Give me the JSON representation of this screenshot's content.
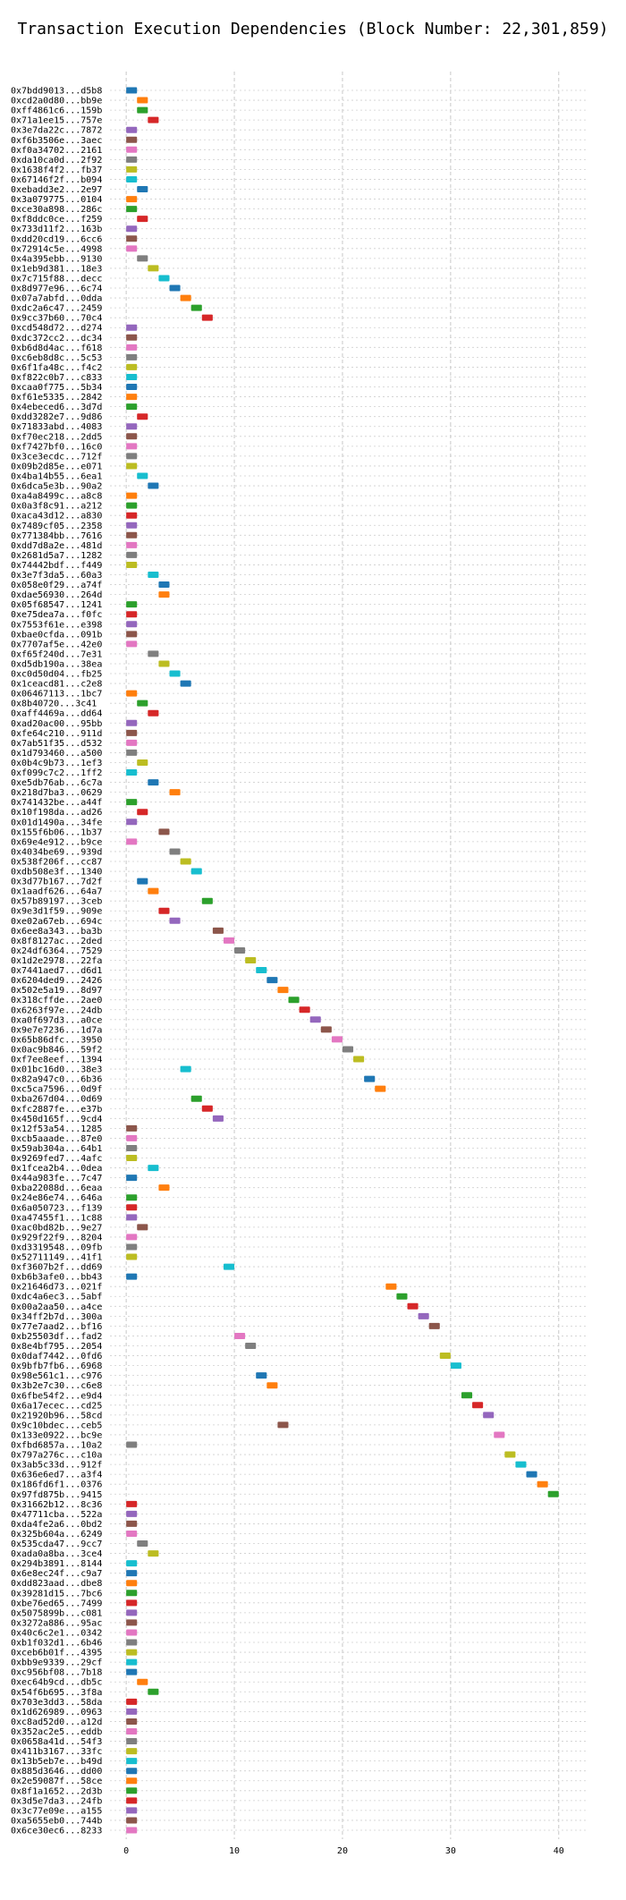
{
  "chart_data": {
    "type": "bar",
    "orientation": "horizontal-gantt",
    "title": "Transaction Execution Dependencies (Block Number: 22,301,859)",
    "xlabel": "",
    "ylabel": "",
    "xlim": [
      -1.5,
      42.5
    ],
    "x_ticks": [
      0,
      10,
      20,
      30,
      40
    ],
    "grid": "vertical dashed lines and dotted row lines",
    "legend": "none",
    "palette": [
      "#1f77b4",
      "#ff7f0e",
      "#2ca02c",
      "#d62728",
      "#9467bd",
      "#8c564b",
      "#e377c2",
      "#7f7f7f",
      "#bcbd22",
      "#17becf"
    ],
    "rows": [
      {
        "tx": "0x7bdd9013...d5b8",
        "start": 0,
        "color": "#1f77b4"
      },
      {
        "tx": "0xcd2a0d80...bb9e",
        "start": 1,
        "color": "#ff7f0e"
      },
      {
        "tx": "0xff4861c6...159b",
        "start": 1,
        "color": "#2ca02c"
      },
      {
        "tx": "0x71a1ee15...757e",
        "start": 2,
        "color": "#d62728"
      },
      {
        "tx": "0x3e7da22c...7872",
        "start": 0,
        "color": "#9467bd"
      },
      {
        "tx": "0xf6b3506e...3aec",
        "start": 0,
        "color": "#8c564b"
      },
      {
        "tx": "0xf0a34702...2161",
        "start": 0,
        "color": "#e377c2"
      },
      {
        "tx": "0xda10ca0d...2f92",
        "start": 0,
        "color": "#7f7f7f"
      },
      {
        "tx": "0x1638f4f2...fb37",
        "start": 0,
        "color": "#bcbd22"
      },
      {
        "tx": "0x67146f2f...b094",
        "start": 0,
        "color": "#17becf"
      },
      {
        "tx": "0xebadd3e2...2e97",
        "start": 1,
        "color": "#1f77b4"
      },
      {
        "tx": "0x3a079775...0104",
        "start": 0,
        "color": "#ff7f0e"
      },
      {
        "tx": "0xce30a898...286c",
        "start": 0,
        "color": "#2ca02c"
      },
      {
        "tx": "0xf8ddc0ce...f259",
        "start": 1,
        "color": "#d62728"
      },
      {
        "tx": "0x733d11f2...163b",
        "start": 0,
        "color": "#9467bd"
      },
      {
        "tx": "0xdd20cd19...6cc6",
        "start": 0,
        "color": "#8c564b"
      },
      {
        "tx": "0x72914c5e...4998",
        "start": 0,
        "color": "#e377c2"
      },
      {
        "tx": "0x4a395ebb...9130",
        "start": 1,
        "color": "#7f7f7f"
      },
      {
        "tx": "0x1eb9d381...18e3",
        "start": 2,
        "color": "#bcbd22"
      },
      {
        "tx": "0x7c715f88...decc",
        "start": 3,
        "color": "#17becf"
      },
      {
        "tx": "0x8d977e96...6c74",
        "start": 4,
        "color": "#1f77b4"
      },
      {
        "tx": "0x07a7abfd...0dda",
        "start": 5,
        "color": "#ff7f0e"
      },
      {
        "tx": "0xdc2a6c47...2459",
        "start": 6,
        "color": "#2ca02c"
      },
      {
        "tx": "0x9cc37b60...70c4",
        "start": 7,
        "color": "#d62728"
      },
      {
        "tx": "0xcd548d72...d274",
        "start": 0,
        "color": "#9467bd"
      },
      {
        "tx": "0xdc372cc2...dc34",
        "start": 0,
        "color": "#8c564b"
      },
      {
        "tx": "0xb6d8d4ac...f618",
        "start": 0,
        "color": "#e377c2"
      },
      {
        "tx": "0xc6eb8d8c...5c53",
        "start": 0,
        "color": "#7f7f7f"
      },
      {
        "tx": "0x6f1fa48c...f4c2",
        "start": 0,
        "color": "#bcbd22"
      },
      {
        "tx": "0xf822c0b7...c833",
        "start": 0,
        "color": "#17becf"
      },
      {
        "tx": "0xcaa0f775...5b34",
        "start": 0,
        "color": "#1f77b4"
      },
      {
        "tx": "0xf61e5335...2842",
        "start": 0,
        "color": "#ff7f0e"
      },
      {
        "tx": "0x4ebeced6...3d7d",
        "start": 0,
        "color": "#2ca02c"
      },
      {
        "tx": "0xdd3282e7...9d86",
        "start": 1,
        "color": "#d62728"
      },
      {
        "tx": "0x71833abd...4083",
        "start": 0,
        "color": "#9467bd"
      },
      {
        "tx": "0xf70ec218...2dd5",
        "start": 0,
        "color": "#8c564b"
      },
      {
        "tx": "0xf7427bf0...16c0",
        "start": 0,
        "color": "#e377c2"
      },
      {
        "tx": "0x3ce3ecdc...712f",
        "start": 0,
        "color": "#7f7f7f"
      },
      {
        "tx": "0x09b2d85e...e071",
        "start": 0,
        "color": "#bcbd22"
      },
      {
        "tx": "0x4ba14b55...6ea1",
        "start": 1,
        "color": "#17becf"
      },
      {
        "tx": "0x6dca5e3b...90a2",
        "start": 2,
        "color": "#1f77b4"
      },
      {
        "tx": "0xa4a8499c...a8c8",
        "start": 0,
        "color": "#ff7f0e"
      },
      {
        "tx": "0x0a3f8c91...a212",
        "start": 0,
        "color": "#2ca02c"
      },
      {
        "tx": "0xaca43d12...a830",
        "start": 0,
        "color": "#d62728"
      },
      {
        "tx": "0x7489cf05...2358",
        "start": 0,
        "color": "#9467bd"
      },
      {
        "tx": "0x771384bb...7616",
        "start": 0,
        "color": "#8c564b"
      },
      {
        "tx": "0xdd7d8a2e...481d",
        "start": 0,
        "color": "#e377c2"
      },
      {
        "tx": "0x2681d5a7...1282",
        "start": 0,
        "color": "#7f7f7f"
      },
      {
        "tx": "0x74442bdf...f449",
        "start": 0,
        "color": "#bcbd22"
      },
      {
        "tx": "0x3e7f3da5...60a3",
        "start": 2,
        "color": "#17becf"
      },
      {
        "tx": "0x058e0f29...a74f",
        "start": 3,
        "color": "#1f77b4"
      },
      {
        "tx": "0xdae56930...264d",
        "start": 3,
        "color": "#ff7f0e"
      },
      {
        "tx": "0x05f68547...1241",
        "start": 0,
        "color": "#2ca02c"
      },
      {
        "tx": "0xe75dea7a...f0fc",
        "start": 0,
        "color": "#d62728"
      },
      {
        "tx": "0x7553f61e...e398",
        "start": 0,
        "color": "#9467bd"
      },
      {
        "tx": "0xbae0cfda...091b",
        "start": 0,
        "color": "#8c564b"
      },
      {
        "tx": "0x7707af5e...42e0",
        "start": 0,
        "color": "#e377c2"
      },
      {
        "tx": "0xf65f240d...7e31",
        "start": 2,
        "color": "#7f7f7f"
      },
      {
        "tx": "0xd5db190a...38ea",
        "start": 3,
        "color": "#bcbd22"
      },
      {
        "tx": "0xc0d50d04...fb25",
        "start": 4,
        "color": "#17becf"
      },
      {
        "tx": "0x1ceacd81...c2e8",
        "start": 5,
        "color": "#1f77b4"
      },
      {
        "tx": "0x06467113...1bc7",
        "start": 0,
        "color": "#ff7f0e"
      },
      {
        "tx": "0x8b40720...3c41",
        "start": 1,
        "color": "#2ca02c"
      },
      {
        "tx": "0xaff4469a...dd64",
        "start": 2,
        "color": "#d62728"
      },
      {
        "tx": "0xad20ac00...95bb",
        "start": 0,
        "color": "#9467bd"
      },
      {
        "tx": "0xfe64c210...911d",
        "start": 0,
        "color": "#8c564b"
      },
      {
        "tx": "0x7ab51f35...d532",
        "start": 0,
        "color": "#e377c2"
      },
      {
        "tx": "0x1d793460...a500",
        "start": 0,
        "color": "#7f7f7f"
      },
      {
        "tx": "0x0b4c9b73...1ef3",
        "start": 1,
        "color": "#bcbd22"
      },
      {
        "tx": "0xf099c7c2...1ff2",
        "start": 0,
        "color": "#17becf"
      },
      {
        "tx": "0xe5db76ab...6c7a",
        "start": 2,
        "color": "#1f77b4"
      },
      {
        "tx": "0x218d7ba3...0629",
        "start": 4,
        "color": "#ff7f0e"
      },
      {
        "tx": "0x741432be...a44f",
        "start": 0,
        "color": "#2ca02c"
      },
      {
        "tx": "0x10f198da...ad26",
        "start": 1,
        "color": "#d62728"
      },
      {
        "tx": "0x01d1490a...34fe",
        "start": 0,
        "color": "#9467bd"
      },
      {
        "tx": "0x155f6b06...1b37",
        "start": 3,
        "color": "#8c564b"
      },
      {
        "tx": "0x69e4e912...b9ce",
        "start": 0,
        "color": "#e377c2"
      },
      {
        "tx": "0x4034be69...939d",
        "start": 4,
        "color": "#7f7f7f"
      },
      {
        "tx": "0x538f206f...cc87",
        "start": 5,
        "color": "#bcbd22"
      },
      {
        "tx": "0xdb508e3f...1340",
        "start": 6,
        "color": "#17becf"
      },
      {
        "tx": "0x3d77b167...7d2f",
        "start": 1,
        "color": "#1f77b4"
      },
      {
        "tx": "0x1aadf626...64a7",
        "start": 2,
        "color": "#ff7f0e"
      },
      {
        "tx": "0x57b89197...3ceb",
        "start": 7,
        "color": "#2ca02c"
      },
      {
        "tx": "0x9e3d1f59...909e",
        "start": 3,
        "color": "#d62728"
      },
      {
        "tx": "0xe02a67eb...694c",
        "start": 4,
        "color": "#9467bd"
      },
      {
        "tx": "0x6ee8a343...ba3b",
        "start": 8,
        "color": "#8c564b"
      },
      {
        "tx": "0x8f8127ac...2ded",
        "start": 9,
        "color": "#e377c2"
      },
      {
        "tx": "0x24df6364...7529",
        "start": 10,
        "color": "#7f7f7f"
      },
      {
        "tx": "0x1d2e2978...22fa",
        "start": 11,
        "color": "#bcbd22"
      },
      {
        "tx": "0x7441aed7...d6d1",
        "start": 12,
        "color": "#17becf"
      },
      {
        "tx": "0x6204ded9...2426",
        "start": 13,
        "color": "#1f77b4"
      },
      {
        "tx": "0x502e5a19...8d97",
        "start": 14,
        "color": "#ff7f0e"
      },
      {
        "tx": "0x318cffde...2ae0",
        "start": 15,
        "color": "#2ca02c"
      },
      {
        "tx": "0x6263f97e...24db",
        "start": 16,
        "color": "#d62728"
      },
      {
        "tx": "0xa0f697d3...a0ce",
        "start": 17,
        "color": "#9467bd"
      },
      {
        "tx": "0x9e7e7236...1d7a",
        "start": 18,
        "color": "#8c564b"
      },
      {
        "tx": "0x65b86dfc...3950",
        "start": 19,
        "color": "#e377c2"
      },
      {
        "tx": "0x0ac9b846...59f2",
        "start": 20,
        "color": "#7f7f7f"
      },
      {
        "tx": "0xf7ee8eef...1394",
        "start": 21,
        "color": "#bcbd22"
      },
      {
        "tx": "0x01bc16d0...38e3",
        "start": 5,
        "color": "#17becf"
      },
      {
        "tx": "0x82a947c0...6b36",
        "start": 22,
        "color": "#1f77b4"
      },
      {
        "tx": "0xc5ca7596...0d9f",
        "start": 23,
        "color": "#ff7f0e"
      },
      {
        "tx": "0xba267d04...0d69",
        "start": 6,
        "color": "#2ca02c"
      },
      {
        "tx": "0xfc2887fe...e37b",
        "start": 7,
        "color": "#d62728"
      },
      {
        "tx": "0x450d165f...9cd4",
        "start": 8,
        "color": "#9467bd"
      },
      {
        "tx": "0x12f53a54...1285",
        "start": 0,
        "color": "#8c564b"
      },
      {
        "tx": "0xcb5aaade...87e0",
        "start": 0,
        "color": "#e377c2"
      },
      {
        "tx": "0x59ab304a...64b1",
        "start": 0,
        "color": "#7f7f7f"
      },
      {
        "tx": "0x9269fed7...4afc",
        "start": 0,
        "color": "#bcbd22"
      },
      {
        "tx": "0x1fcea2b4...0dea",
        "start": 2,
        "color": "#17becf"
      },
      {
        "tx": "0x44a983fe...7c47",
        "start": 0,
        "color": "#1f77b4"
      },
      {
        "tx": "0xba22088d...6eaa",
        "start": 3,
        "color": "#ff7f0e"
      },
      {
        "tx": "0x24e86e74...646a",
        "start": 0,
        "color": "#2ca02c"
      },
      {
        "tx": "0x6a050723...f139",
        "start": 0,
        "color": "#d62728"
      },
      {
        "tx": "0xa47455f1...1c88",
        "start": 0,
        "color": "#9467bd"
      },
      {
        "tx": "0xac0bd82b...9e27",
        "start": 1,
        "color": "#8c564b"
      },
      {
        "tx": "0x929f22f9...8204",
        "start": 0,
        "color": "#e377c2"
      },
      {
        "tx": "0xd3319548...09fb",
        "start": 0,
        "color": "#7f7f7f"
      },
      {
        "tx": "0x52711149...41f1",
        "start": 0,
        "color": "#bcbd22"
      },
      {
        "tx": "0xf3607b2f...dd69",
        "start": 9,
        "color": "#17becf"
      },
      {
        "tx": "0xb6b3afe0...bb43",
        "start": 0,
        "color": "#1f77b4"
      },
      {
        "tx": "0x21646d73...021f",
        "start": 24,
        "color": "#ff7f0e"
      },
      {
        "tx": "0xdc4a6ec3...5abf",
        "start": 25,
        "color": "#2ca02c"
      },
      {
        "tx": "0x00a2aa50...a4ce",
        "start": 26,
        "color": "#d62728"
      },
      {
        "tx": "0x34ff2b7d...300a",
        "start": 27,
        "color": "#9467bd"
      },
      {
        "tx": "0x77e7aad2...bf16",
        "start": 28,
        "color": "#8c564b"
      },
      {
        "tx": "0xb25503df...fad2",
        "start": 10,
        "color": "#e377c2"
      },
      {
        "tx": "0x8e4bf795...2054",
        "start": 11,
        "color": "#7f7f7f"
      },
      {
        "tx": "0x0daf7442...0fd6",
        "start": 29,
        "color": "#bcbd22"
      },
      {
        "tx": "0x9bfb7fb6...6968",
        "start": 30,
        "color": "#17becf"
      },
      {
        "tx": "0x98e561c1...c976",
        "start": 12,
        "color": "#1f77b4"
      },
      {
        "tx": "0x3b2e7c30...c6e8",
        "start": 13,
        "color": "#ff7f0e"
      },
      {
        "tx": "0x6fbe54f2...e9d4",
        "start": 31,
        "color": "#2ca02c"
      },
      {
        "tx": "0x6a17ecec...cd25",
        "start": 32,
        "color": "#d62728"
      },
      {
        "tx": "0x21920b96...58cd",
        "start": 33,
        "color": "#9467bd"
      },
      {
        "tx": "0x9c10bdec...ceb5",
        "start": 14,
        "color": "#8c564b"
      },
      {
        "tx": "0x133e0922...bc9e",
        "start": 34,
        "color": "#e377c2"
      },
      {
        "tx": "0xfbd6857a...10a2",
        "start": 0,
        "color": "#7f7f7f"
      },
      {
        "tx": "0x797a276c...c10a",
        "start": 35,
        "color": "#bcbd22"
      },
      {
        "tx": "0x3ab5c33d...912f",
        "start": 36,
        "color": "#17becf"
      },
      {
        "tx": "0x636e6ed7...a3f4",
        "start": 37,
        "color": "#1f77b4"
      },
      {
        "tx": "0x186fd6f1...0376",
        "start": 38,
        "color": "#ff7f0e"
      },
      {
        "tx": "0x97fd875b...9415",
        "start": 39,
        "color": "#2ca02c"
      },
      {
        "tx": "0x31662b12...8c36",
        "start": 0,
        "color": "#d62728"
      },
      {
        "tx": "0x47711cba...522a",
        "start": 0,
        "color": "#9467bd"
      },
      {
        "tx": "0xda4fe2a6...0bd2",
        "start": 0,
        "color": "#8c564b"
      },
      {
        "tx": "0x325b604a...6249",
        "start": 0,
        "color": "#e377c2"
      },
      {
        "tx": "0x535cda47...9cc7",
        "start": 1,
        "color": "#7f7f7f"
      },
      {
        "tx": "0xada0a8ba...3ce4",
        "start": 2,
        "color": "#bcbd22"
      },
      {
        "tx": "0x294b3891...8144",
        "start": 0,
        "color": "#17becf"
      },
      {
        "tx": "0x6e8ec24f...c9a7",
        "start": 0,
        "color": "#1f77b4"
      },
      {
        "tx": "0xdd823aad...dbe8",
        "start": 0,
        "color": "#ff7f0e"
      },
      {
        "tx": "0x39281d15...7bc6",
        "start": 0,
        "color": "#2ca02c"
      },
      {
        "tx": "0xbe76ed65...7499",
        "start": 0,
        "color": "#d62728"
      },
      {
        "tx": "0x5075899b...c081",
        "start": 0,
        "color": "#9467bd"
      },
      {
        "tx": "0x3272a886...95ac",
        "start": 0,
        "color": "#8c564b"
      },
      {
        "tx": "0x40c6c2e1...0342",
        "start": 0,
        "color": "#e377c2"
      },
      {
        "tx": "0xb1f032d1...6b46",
        "start": 0,
        "color": "#7f7f7f"
      },
      {
        "tx": "0xceb6b01f...4395",
        "start": 0,
        "color": "#bcbd22"
      },
      {
        "tx": "0xbb9e9339...29cf",
        "start": 0,
        "color": "#17becf"
      },
      {
        "tx": "0xc956bf08...7b18",
        "start": 0,
        "color": "#1f77b4"
      },
      {
        "tx": "0xec64b9cd...db5c",
        "start": 1,
        "color": "#ff7f0e"
      },
      {
        "tx": "0x54f6b695...3f8a",
        "start": 2,
        "color": "#2ca02c"
      },
      {
        "tx": "0x703e3dd3...58da",
        "start": 0,
        "color": "#d62728"
      },
      {
        "tx": "0x1d626989...0963",
        "start": 0,
        "color": "#9467bd"
      },
      {
        "tx": "0xc8ad52d0...a12d",
        "start": 0,
        "color": "#8c564b"
      },
      {
        "tx": "0x352ac2e5...eddb",
        "start": 0,
        "color": "#e377c2"
      },
      {
        "tx": "0x0658a41d...54f3",
        "start": 0,
        "color": "#7f7f7f"
      },
      {
        "tx": "0x411b3167...33fc",
        "start": 0,
        "color": "#bcbd22"
      },
      {
        "tx": "0x13b5eb7e...b49d",
        "start": 0,
        "color": "#17becf"
      },
      {
        "tx": "0x885d3646...dd00",
        "start": 0,
        "color": "#1f77b4"
      },
      {
        "tx": "0x2e59087f...58ce",
        "start": 0,
        "color": "#ff7f0e"
      },
      {
        "tx": "0x8f1a1652...2d3b",
        "start": 0,
        "color": "#2ca02c"
      },
      {
        "tx": "0x3d5e7da3...24fb",
        "start": 0,
        "color": "#d62728"
      },
      {
        "tx": "0x3c77e09e...a155",
        "start": 0,
        "color": "#9467bd"
      },
      {
        "tx": "0xa5655eb0...744b",
        "start": 0,
        "color": "#8c564b"
      },
      {
        "tx": "0x6ce30ec6...8233",
        "start": 0,
        "color": "#e377c2"
      }
    ]
  }
}
